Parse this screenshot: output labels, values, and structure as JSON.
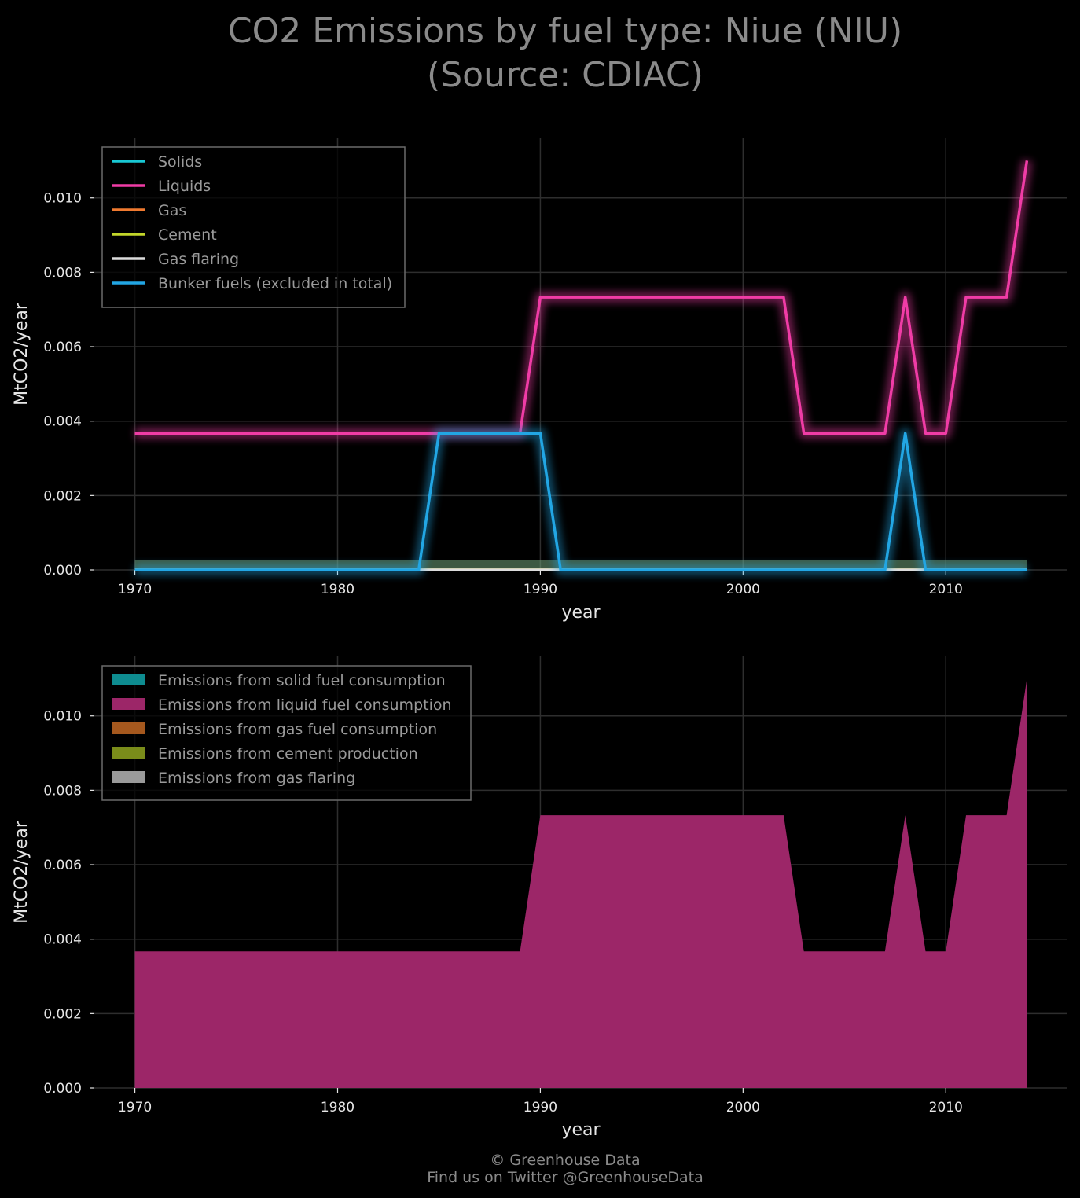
{
  "title": {
    "line1": "CO2 Emissions by fuel type: Niue (NIU)",
    "line2": "(Source: CDIAC)"
  },
  "footer": {
    "line1": "© Greenhouse Data",
    "line2": "Find us on Twitter @GreenhouseData"
  },
  "chart_data": [
    {
      "type": "line",
      "xlabel": "year",
      "ylabel": "MtCO2/year",
      "xlim": [
        1968,
        2016
      ],
      "ylim": [
        0,
        0.0116
      ],
      "xticks": [
        1970,
        1980,
        1990,
        2000,
        2010
      ],
      "yticks": [
        "0.000",
        "0.002",
        "0.004",
        "0.006",
        "0.008",
        "0.010"
      ],
      "grid": true,
      "legend_position": "top-left",
      "x": [
        1970,
        1971,
        1972,
        1973,
        1974,
        1975,
        1976,
        1977,
        1978,
        1979,
        1980,
        1981,
        1982,
        1983,
        1984,
        1985,
        1986,
        1987,
        1988,
        1989,
        1990,
        1991,
        1992,
        1993,
        1994,
        1995,
        1996,
        1997,
        1998,
        1999,
        2000,
        2001,
        2002,
        2003,
        2004,
        2005,
        2006,
        2007,
        2008,
        2009,
        2010,
        2011,
        2012,
        2013,
        2014
      ],
      "series": [
        {
          "name": "Solids",
          "color": "#18c8d4",
          "values": [
            0,
            0,
            0,
            0,
            0,
            0,
            0,
            0,
            0,
            0,
            0,
            0,
            0,
            0,
            0,
            0,
            0,
            0,
            0,
            0,
            0,
            0,
            0,
            0,
            0,
            0,
            0,
            0,
            0,
            0,
            0,
            0,
            0,
            0,
            0,
            0,
            0,
            0,
            0,
            0,
            0,
            0,
            0,
            0,
            0
          ]
        },
        {
          "name": "Liquids",
          "color": "#f03ca6",
          "values": [
            0.00367,
            0.00367,
            0.00367,
            0.00367,
            0.00367,
            0.00367,
            0.00367,
            0.00367,
            0.00367,
            0.00367,
            0.00367,
            0.00367,
            0.00367,
            0.00367,
            0.00367,
            0.00367,
            0.00367,
            0.00367,
            0.00367,
            0.00367,
            0.00733,
            0.00733,
            0.00733,
            0.00733,
            0.00733,
            0.00733,
            0.00733,
            0.00733,
            0.00733,
            0.00733,
            0.00733,
            0.00733,
            0.00733,
            0.00367,
            0.00367,
            0.00367,
            0.00367,
            0.00367,
            0.00733,
            0.00367,
            0.00367,
            0.00733,
            0.00733,
            0.00733,
            0.011
          ]
        },
        {
          "name": "Gas",
          "color": "#f07a30",
          "values": [
            0,
            0,
            0,
            0,
            0,
            0,
            0,
            0,
            0,
            0,
            0,
            0,
            0,
            0,
            0,
            0,
            0,
            0,
            0,
            0,
            0,
            0,
            0,
            0,
            0,
            0,
            0,
            0,
            0,
            0,
            0,
            0,
            0,
            0,
            0,
            0,
            0,
            0,
            0,
            0,
            0,
            0,
            0,
            0,
            0
          ]
        },
        {
          "name": "Cement",
          "color": "#c2d62a",
          "values": [
            0,
            0,
            0,
            0,
            0,
            0,
            0,
            0,
            0,
            0,
            0,
            0,
            0,
            0,
            0,
            0,
            0,
            0,
            0,
            0,
            0,
            0,
            0,
            0,
            0,
            0,
            0,
            0,
            0,
            0,
            0,
            0,
            0,
            0,
            0,
            0,
            0,
            0,
            0,
            0,
            0,
            0,
            0,
            0,
            0
          ]
        },
        {
          "name": "Gas flaring",
          "color": "#dcdcdc",
          "values": [
            0,
            0,
            0,
            0,
            0,
            0,
            0,
            0,
            0,
            0,
            0,
            0,
            0,
            0,
            0,
            0,
            0,
            0,
            0,
            0,
            0,
            0,
            0,
            0,
            0,
            0,
            0,
            0,
            0,
            0,
            0,
            0,
            0,
            0,
            0,
            0,
            0,
            0,
            0,
            0,
            0,
            0,
            0,
            0,
            0
          ]
        },
        {
          "name": "Bunker fuels (excluded in total)",
          "color": "#22a6e4",
          "values": [
            0,
            0,
            0,
            0,
            0,
            0,
            0,
            0,
            0,
            0,
            0,
            0,
            0,
            0,
            0,
            0.00367,
            0.00367,
            0.00367,
            0.00367,
            0.00367,
            0.00367,
            0,
            0,
            0,
            0,
            0,
            0,
            0,
            0,
            0,
            0,
            0,
            0,
            0,
            0,
            0,
            0,
            0,
            0.00367,
            0,
            0,
            0,
            0,
            0,
            0
          ]
        }
      ]
    },
    {
      "type": "area",
      "xlabel": "year",
      "ylabel": "MtCO2/year",
      "xlim": [
        1968,
        2016
      ],
      "ylim": [
        0,
        0.0116
      ],
      "xticks": [
        1970,
        1980,
        1990,
        2000,
        2010
      ],
      "yticks": [
        "0.000",
        "0.002",
        "0.004",
        "0.006",
        "0.008",
        "0.010"
      ],
      "grid": true,
      "legend_position": "top-left",
      "stacked": true,
      "x": [
        1970,
        1971,
        1972,
        1973,
        1974,
        1975,
        1976,
        1977,
        1978,
        1979,
        1980,
        1981,
        1982,
        1983,
        1984,
        1985,
        1986,
        1987,
        1988,
        1989,
        1990,
        1991,
        1992,
        1993,
        1994,
        1995,
        1996,
        1997,
        1998,
        1999,
        2000,
        2001,
        2002,
        2003,
        2004,
        2005,
        2006,
        2007,
        2008,
        2009,
        2010,
        2011,
        2012,
        2013,
        2014
      ],
      "series": [
        {
          "name": "Emissions from solid fuel consumption",
          "color": "#0e8c90",
          "values": [
            0,
            0,
            0,
            0,
            0,
            0,
            0,
            0,
            0,
            0,
            0,
            0,
            0,
            0,
            0,
            0,
            0,
            0,
            0,
            0,
            0,
            0,
            0,
            0,
            0,
            0,
            0,
            0,
            0,
            0,
            0,
            0,
            0,
            0,
            0,
            0,
            0,
            0,
            0,
            0,
            0,
            0,
            0,
            0,
            0
          ]
        },
        {
          "name": "Emissions from liquid fuel consumption",
          "color": "#9c2668",
          "values": [
            0.00367,
            0.00367,
            0.00367,
            0.00367,
            0.00367,
            0.00367,
            0.00367,
            0.00367,
            0.00367,
            0.00367,
            0.00367,
            0.00367,
            0.00367,
            0.00367,
            0.00367,
            0.00367,
            0.00367,
            0.00367,
            0.00367,
            0.00367,
            0.00733,
            0.00733,
            0.00733,
            0.00733,
            0.00733,
            0.00733,
            0.00733,
            0.00733,
            0.00733,
            0.00733,
            0.00733,
            0.00733,
            0.00733,
            0.00367,
            0.00367,
            0.00367,
            0.00367,
            0.00367,
            0.00733,
            0.00367,
            0.00367,
            0.00733,
            0.00733,
            0.00733,
            0.011
          ]
        },
        {
          "name": "Emissions from gas fuel consumption",
          "color": "#a5581e",
          "values": [
            0,
            0,
            0,
            0,
            0,
            0,
            0,
            0,
            0,
            0,
            0,
            0,
            0,
            0,
            0,
            0,
            0,
            0,
            0,
            0,
            0,
            0,
            0,
            0,
            0,
            0,
            0,
            0,
            0,
            0,
            0,
            0,
            0,
            0,
            0,
            0,
            0,
            0,
            0,
            0,
            0,
            0,
            0,
            0,
            0
          ]
        },
        {
          "name": "Emissions from cement production",
          "color": "#7a8c1a",
          "values": [
            0,
            0,
            0,
            0,
            0,
            0,
            0,
            0,
            0,
            0,
            0,
            0,
            0,
            0,
            0,
            0,
            0,
            0,
            0,
            0,
            0,
            0,
            0,
            0,
            0,
            0,
            0,
            0,
            0,
            0,
            0,
            0,
            0,
            0,
            0,
            0,
            0,
            0,
            0,
            0,
            0,
            0,
            0,
            0,
            0
          ]
        },
        {
          "name": "Emissions from gas flaring",
          "color": "#9a9a9a",
          "values": [
            0,
            0,
            0,
            0,
            0,
            0,
            0,
            0,
            0,
            0,
            0,
            0,
            0,
            0,
            0,
            0,
            0,
            0,
            0,
            0,
            0,
            0,
            0,
            0,
            0,
            0,
            0,
            0,
            0,
            0,
            0,
            0,
            0,
            0,
            0,
            0,
            0,
            0,
            0,
            0,
            0,
            0,
            0,
            0,
            0
          ]
        }
      ]
    }
  ]
}
